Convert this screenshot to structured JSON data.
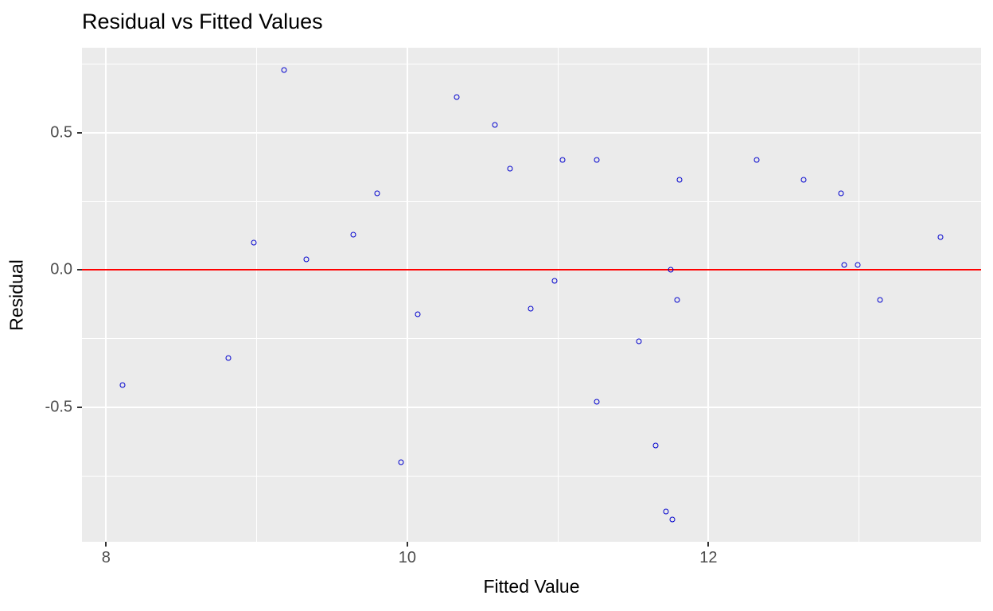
{
  "title": "Residual vs Fitted Values",
  "colors": {
    "panel_background": "#EBEBEB",
    "gridline": "#FFFFFF",
    "point_stroke": "#0000CD",
    "reference_line": "#FF0000",
    "tick_label": "#4D4D4D",
    "tick_mark": "#333333",
    "axis_title": "#000000",
    "plot_title": "#000000"
  },
  "chart_data": {
    "type": "scatter",
    "title": "Residual vs Fitted Values",
    "xlabel": "Fitted Value",
    "ylabel": "Residual",
    "xlim": [
      7.84,
      13.81
    ],
    "ylim": [
      -0.99,
      0.81
    ],
    "x_major_ticks": [
      8,
      10,
      12
    ],
    "x_tick_labels": [
      "8",
      "10",
      "12"
    ],
    "x_minor_gridlines": [
      9,
      11,
      13
    ],
    "y_major_ticks": [
      0.5,
      0.0,
      -0.5
    ],
    "y_tick_labels": [
      "0.5",
      "0.0",
      "-0.5"
    ],
    "y_minor_gridlines": [
      0.75,
      0.25,
      -0.25,
      -0.75
    ],
    "grid": "on",
    "legend": "none",
    "marker": "open-circle",
    "reference_line": {
      "y": 0,
      "color": "#FF0000"
    },
    "series": [
      {
        "name": "residuals",
        "points": [
          [
            8.11,
            -0.42
          ],
          [
            8.81,
            -0.32
          ],
          [
            8.98,
            0.1
          ],
          [
            9.18,
            0.73
          ],
          [
            9.33,
            0.04
          ],
          [
            9.64,
            0.13
          ],
          [
            9.8,
            0.28
          ],
          [
            9.96,
            -0.7
          ],
          [
            10.07,
            -0.16
          ],
          [
            10.33,
            0.63
          ],
          [
            10.58,
            0.53
          ],
          [
            10.68,
            0.37
          ],
          [
            10.82,
            -0.14
          ],
          [
            10.98,
            -0.04
          ],
          [
            11.03,
            0.4
          ],
          [
            11.26,
            0.4
          ],
          [
            11.26,
            -0.48
          ],
          [
            11.54,
            -0.26
          ],
          [
            11.65,
            -0.64
          ],
          [
            11.72,
            -0.88
          ],
          [
            11.75,
            0.0
          ],
          [
            11.76,
            -0.91
          ],
          [
            11.79,
            -0.11
          ],
          [
            11.81,
            0.33
          ],
          [
            12.32,
            0.4
          ],
          [
            12.63,
            0.33
          ],
          [
            12.88,
            0.28
          ],
          [
            12.9,
            0.02
          ],
          [
            12.99,
            0.02
          ],
          [
            13.14,
            -0.11
          ],
          [
            13.54,
            0.12
          ]
        ]
      }
    ]
  }
}
